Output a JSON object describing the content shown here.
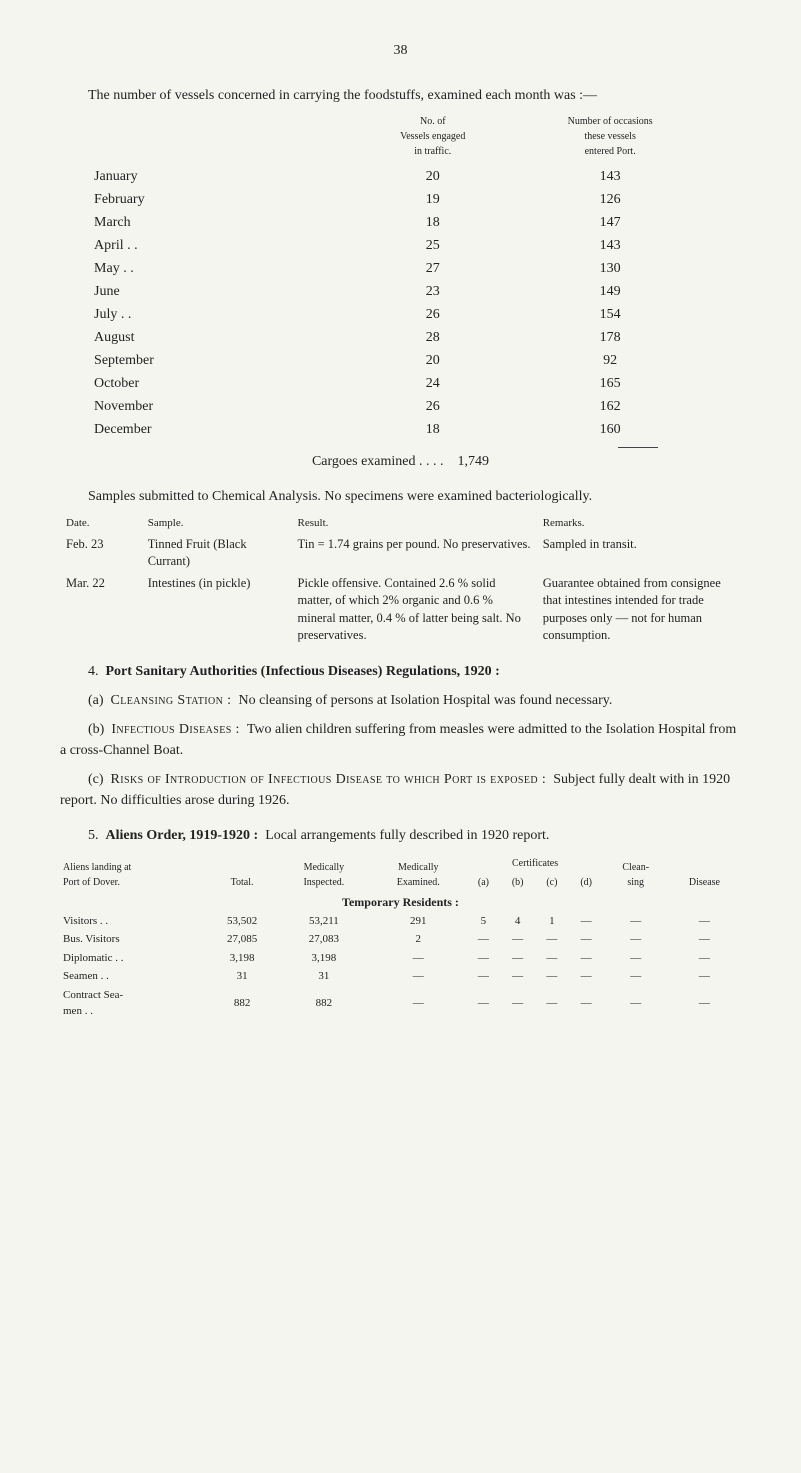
{
  "page_number": "38",
  "intro": "The number of vessels concerned in carrying the foodstuffs, examined each month was :—",
  "vessel_table": {
    "col1_header": "No. of\nVessels engaged\nin traffic.",
    "col2_header": "Number of occasions\nthese vessels\nentered Port.",
    "rows": [
      {
        "month": "January",
        "vessels": "20",
        "occasions": "143"
      },
      {
        "month": "February",
        "vessels": "19",
        "occasions": "126"
      },
      {
        "month": "March",
        "vessels": "18",
        "occasions": "147"
      },
      {
        "month": "April . .",
        "vessels": "25",
        "occasions": "143"
      },
      {
        "month": "May . .",
        "vessels": "27",
        "occasions": "130"
      },
      {
        "month": "June",
        "vessels": "23",
        "occasions": "149"
      },
      {
        "month": "July . .",
        "vessels": "26",
        "occasions": "154"
      },
      {
        "month": "August",
        "vessels": "28",
        "occasions": "178"
      },
      {
        "month": "September",
        "vessels": "20",
        "occasions": "92"
      },
      {
        "month": "October",
        "vessels": "24",
        "occasions": "165"
      },
      {
        "month": "November",
        "vessels": "26",
        "occasions": "162"
      },
      {
        "month": "December",
        "vessels": "18",
        "occasions": "160"
      }
    ],
    "total_label": "Cargoes examined  . .    . .",
    "total_value": "1,749"
  },
  "samples_intro": "Samples submitted to Chemical Analysis. No specimens were examined bacteriologically.",
  "samples_table": {
    "headers": {
      "date": "Date.",
      "sample": "Sample.",
      "result": "Result.",
      "remarks": "Remarks."
    },
    "rows": [
      {
        "date": "Feb. 23",
        "sample": "Tinned Fruit (Black Currant)",
        "result": "Tin = 1.74 grains per pound. No preservatives.",
        "remarks": "Sampled in transit."
      },
      {
        "date": "Mar. 22",
        "sample": "Intestines (in pickle)",
        "result": "Pickle offensive. Contained 2.6 % solid matter, of which 2% organic and 0.6 % mineral matter, 0.4 % of latter being salt. No preservatives.",
        "remarks": "Guarantee obtained from consignee that intestines intended for trade purposes only — not for human consumption."
      }
    ]
  },
  "section4": {
    "num": "4.",
    "title": "Port Sanitary Authorities (Infectious Diseases) Regulations, 1920 :",
    "a_label": "(a)",
    "a_heading": "Cleansing Station :",
    "a_text": "No cleansing of persons at Isolation Hospital was found necessary.",
    "b_label": "(b)",
    "b_heading": "Infectious Diseases :",
    "b_text": "Two alien children suffering from measles were admitted to the Isolation Hospital from a cross-Channel Boat.",
    "c_label": "(c)",
    "c_heading": "Risks of Introduction of Infectious Disease to which Port is exposed :",
    "c_text": "Subject fully dealt with in 1920 report. No difficulties arose during 1926."
  },
  "section5": {
    "num": "5.",
    "title": "Aliens Order, 1919-1920 :",
    "text": "Local arrangements fully described in 1920 report."
  },
  "aliens_table": {
    "headers": {
      "h1": "Aliens landing at\nPort of Dover.",
      "h2": "Total.",
      "h3": "Medically\nInspected.",
      "h4": "Medically\nExamined.",
      "h5": "Certificates",
      "h5a": "(a)",
      "h5b": "(b)",
      "h5c": "(c)",
      "h5d": "(d)",
      "h6": "Clean-\nsing",
      "h7": "Disease"
    },
    "temp_label": "Temporary Residents :",
    "rows": [
      {
        "label": "Visitors   . .",
        "total": "53,502",
        "insp": "53,211",
        "exam": "291",
        "a": "5",
        "b": "4",
        "c": "1",
        "d": "—",
        "clean": "—",
        "dis": "—"
      },
      {
        "label": "Bus. Visitors",
        "total": "27,085",
        "insp": "27,083",
        "exam": "2",
        "a": "—",
        "b": "—",
        "c": "—",
        "d": "—",
        "clean": "—",
        "dis": "—"
      },
      {
        "label": "Diplomatic . .",
        "total": "3,198",
        "insp": "3,198",
        "exam": "—",
        "a": "—",
        "b": "—",
        "c": "—",
        "d": "—",
        "clean": "—",
        "dis": "—"
      },
      {
        "label": "Seamen   . .",
        "total": "31",
        "insp": "31",
        "exam": "—",
        "a": "—",
        "b": "—",
        "c": "—",
        "d": "—",
        "clean": "—",
        "dis": "—"
      },
      {
        "label": "Contract Sea-\n  men   . .",
        "total": "882",
        "insp": "882",
        "exam": "—",
        "a": "—",
        "b": "—",
        "c": "—",
        "d": "—",
        "clean": "—",
        "dis": "—"
      }
    ]
  }
}
